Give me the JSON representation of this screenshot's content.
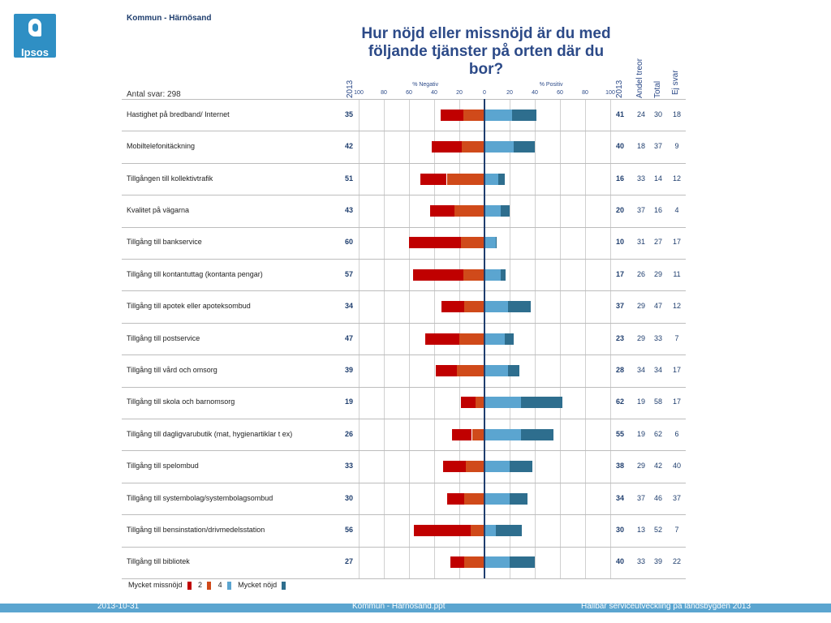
{
  "header": {
    "logo_text": "Ipsos",
    "kommun": "Kommun - Härnösand",
    "title": "Hur nöjd eller missnöjd är du med följande tjänster på orten där du bor?",
    "antal_svar": "Antal svar: 298"
  },
  "columns": {
    "neg_year": "2013",
    "pos_year": "2013",
    "andel": "Andel treor",
    "total": "Total",
    "ej_svar": "Ej svar"
  },
  "colors": {
    "c1": "#c00000",
    "c2": "#d04a1a",
    "c4": "#5ba5d0",
    "c5": "#2e6e8e"
  },
  "chart_data": {
    "type": "bar",
    "subtype": "diverging-stacked",
    "neg_axis_label": "% Negativ",
    "pos_axis_label": "% Positiv",
    "ticks": [
      100,
      80,
      60,
      40,
      20,
      0,
      20,
      40,
      60,
      80,
      100
    ],
    "xlim": [
      -100,
      100
    ],
    "legend": [
      "Mycket missnöjd",
      "2",
      "4",
      "Mycket nöjd"
    ],
    "categories": [
      "Hastighet på bredband/ Internet",
      "Mobiltelefonitäckning",
      "Tillgången till kollektivtrafik",
      "Kvalitet på vägarna",
      "Tillgång till bankservice",
      "Tillgång till kontantuttag (kontanta pengar)",
      "Tillgång till apotek eller apoteksombud",
      "Tillgång till postservice",
      "Tillgång till vård och omsorg",
      "Tillgång till skola och barnomsorg",
      "Tillgång till dagligvarubutik (mat, hygienartiklar t ex)",
      "Tillgång till spelombud",
      "Tillgång till systembolag/systembolagsombud",
      "Tillgång till bensinstation/drivmedelsstation",
      "Tillgång till bibliotek"
    ],
    "neg_2013": [
      35,
      42,
      51,
      43,
      60,
      57,
      34,
      47,
      39,
      19,
      26,
      33,
      30,
      56,
      27
    ],
    "pos_2013": [
      41,
      40,
      16,
      20,
      10,
      17,
      37,
      23,
      28,
      62,
      55,
      38,
      34,
      30,
      40
    ],
    "andel_treor": [
      24,
      18,
      33,
      37,
      31,
      26,
      29,
      29,
      34,
      19,
      19,
      29,
      37,
      13,
      33
    ],
    "total": [
      30,
      37,
      14,
      16,
      27,
      29,
      47,
      33,
      34,
      58,
      62,
      42,
      46,
      52,
      39
    ],
    "ej_svar": [
      18,
      9,
      12,
      4,
      17,
      11,
      12,
      7,
      17,
      17,
      6,
      40,
      37,
      7,
      22
    ],
    "series": [
      {
        "name": "Mycket missnöjd",
        "values": [
          18,
          24,
          21,
          19,
          41,
          40,
          18,
          27,
          17,
          12,
          16,
          18,
          14,
          45,
          11
        ]
      },
      {
        "name": "2",
        "values": [
          17,
          18,
          30,
          24,
          19,
          17,
          16,
          20,
          22,
          7,
          10,
          15,
          16,
          11,
          16
        ]
      },
      {
        "name": "4",
        "values": [
          22,
          23,
          11,
          13,
          9,
          13,
          19,
          16,
          19,
          29,
          29,
          20,
          20,
          9,
          20
        ]
      },
      {
        "name": "Mycket nöjd",
        "values": [
          19,
          17,
          5,
          7,
          1,
          4,
          18,
          7,
          9,
          33,
          26,
          18,
          14,
          21,
          20
        ]
      }
    ]
  },
  "footer": {
    "date": "2013-10-31",
    "file": "Kommun - Härnösand.ppt",
    "project": "Hållbar serviceutveckling på landsbygden 2013"
  }
}
